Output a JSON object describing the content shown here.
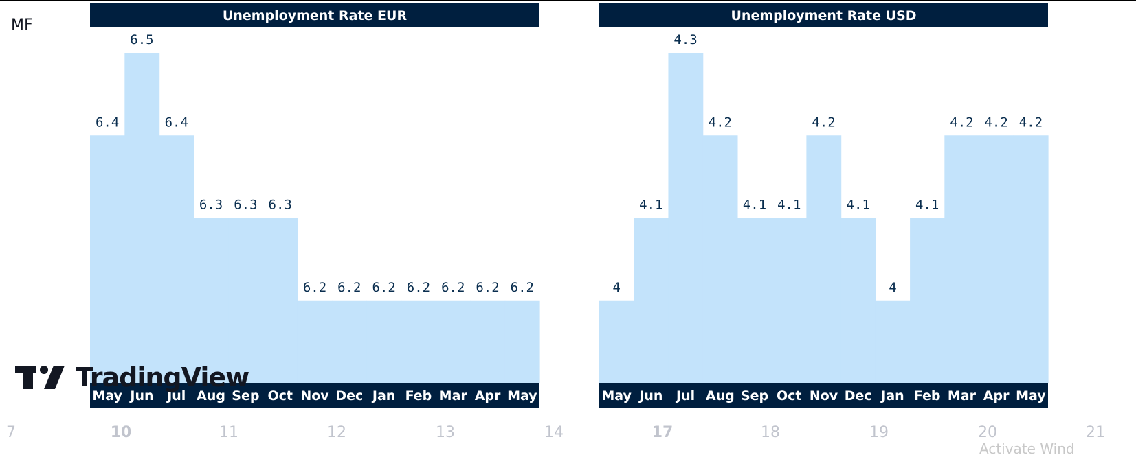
{
  "symbol_label": "MF",
  "logo_text": "TradingView",
  "watermark_text": "Activate Wind",
  "colors": {
    "header_bg": "#001f3f",
    "bar_fill": "#c3e3fb",
    "value_text": "#0a2e4f",
    "axis_text": "#c1c4cd"
  },
  "time_axis": {
    "ticks": [
      {
        "label": "7",
        "bold": false
      },
      {
        "label": "10",
        "bold": true
      },
      {
        "label": "11",
        "bold": false
      },
      {
        "label": "12",
        "bold": false
      },
      {
        "label": "13",
        "bold": false
      },
      {
        "label": "14",
        "bold": false
      },
      {
        "label": "17",
        "bold": true
      },
      {
        "label": "18",
        "bold": false
      },
      {
        "label": "19",
        "bold": false
      },
      {
        "label": "20",
        "bold": false
      },
      {
        "label": "21",
        "bold": false
      }
    ]
  },
  "chart_data": [
    {
      "type": "bar",
      "title": "Unemployment Rate EUR",
      "categories": [
        "May",
        "Jun",
        "Jul",
        "Aug",
        "Sep",
        "Oct",
        "Nov",
        "Dec",
        "Jan",
        "Feb",
        "Mar",
        "Apr",
        "May"
      ],
      "values": [
        6.4,
        6.5,
        6.4,
        6.3,
        6.3,
        6.3,
        6.2,
        6.2,
        6.2,
        6.2,
        6.2,
        6.2,
        6.2
      ],
      "labels": [
        "6.4",
        "6.5",
        "6.4",
        "6.3",
        "6.3",
        "6.3",
        "6.2",
        "6.2",
        "6.2",
        "6.2",
        "6.2",
        "6.2",
        "6.2"
      ],
      "ylim": [
        6.1,
        6.5
      ],
      "xlabel": "",
      "ylabel": "",
      "grid": false
    },
    {
      "type": "bar",
      "title": "Unemployment Rate USD",
      "categories": [
        "May",
        "Jun",
        "Jul",
        "Aug",
        "Sep",
        "Oct",
        "Nov",
        "Dec",
        "Jan",
        "Feb",
        "Mar",
        "Apr",
        "May"
      ],
      "values": [
        4.0,
        4.1,
        4.3,
        4.2,
        4.1,
        4.1,
        4.2,
        4.1,
        4.0,
        4.1,
        4.2,
        4.2,
        4.2
      ],
      "labels": [
        "4",
        "4.1",
        "4.3",
        "4.2",
        "4.1",
        "4.1",
        "4.2",
        "4.1",
        "4",
        "4.1",
        "4.2",
        "4.2",
        "4.2"
      ],
      "ylim": [
        3.9,
        4.3
      ],
      "xlabel": "",
      "ylabel": "",
      "grid": false
    }
  ]
}
